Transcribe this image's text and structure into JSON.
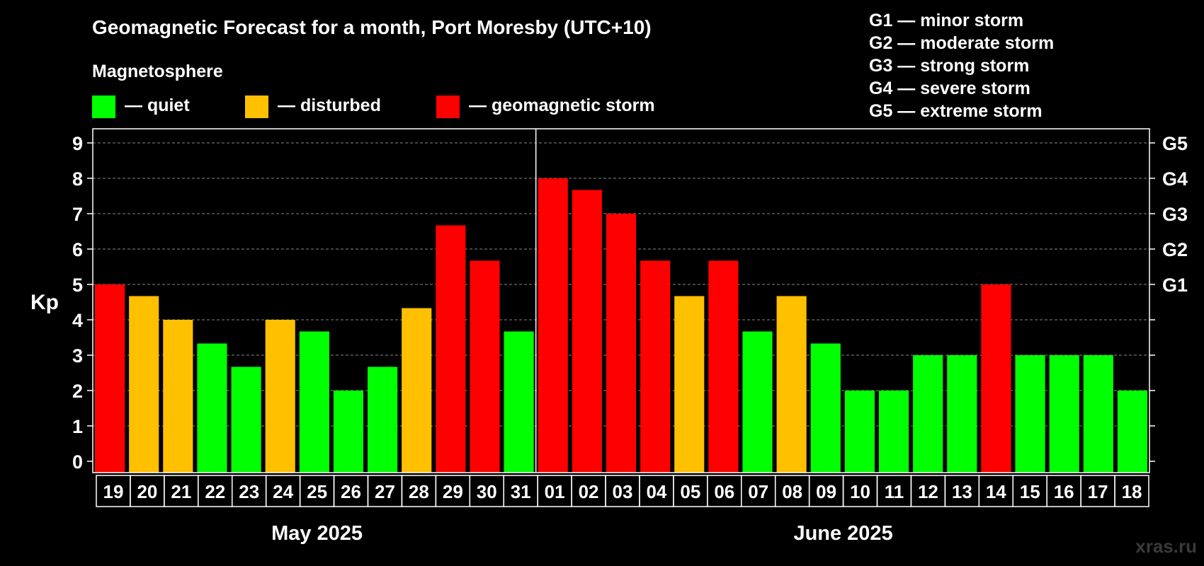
{
  "chart_data": {
    "type": "bar",
    "title": "Geomagnetic Forecast for a month, Port Moresby (UTC+10)",
    "section_label": "Magnetosphere",
    "legend": [
      {
        "label": "— quiet",
        "color": "#00ff00"
      },
      {
        "label": "— disturbed",
        "color": "#ffc000"
      },
      {
        "label": "— geomagnetic storm",
        "color": "#ff0000"
      }
    ],
    "storm_scale": [
      "G1 — minor storm",
      "G2 — moderate storm",
      "G3 — strong storm",
      "G4 — severe storm",
      "G5 — extreme storm"
    ],
    "ylabel": "Kp",
    "ylim": [
      0,
      9
    ],
    "yticks": [
      "0",
      "1",
      "2",
      "3",
      "4",
      "5",
      "6",
      "7",
      "8",
      "9"
    ],
    "right_ticks": [
      {
        "label": "G1",
        "kp": 5
      },
      {
        "label": "G2",
        "kp": 6
      },
      {
        "label": "G3",
        "kp": 7
      },
      {
        "label": "G4",
        "kp": 8
      },
      {
        "label": "G5",
        "kp": 9
      }
    ],
    "grid": true,
    "categories": [
      "19",
      "20",
      "21",
      "22",
      "23",
      "24",
      "25",
      "26",
      "27",
      "28",
      "29",
      "30",
      "31",
      "01",
      "02",
      "03",
      "04",
      "05",
      "06",
      "07",
      "08",
      "09",
      "10",
      "11",
      "12",
      "13",
      "14",
      "15",
      "16",
      "17",
      "18"
    ],
    "values": [
      5,
      4.67,
      4,
      3.33,
      2.67,
      4,
      3.67,
      2,
      2.67,
      4.33,
      6.67,
      5.67,
      3.67,
      8,
      7.67,
      7,
      5.67,
      4.67,
      5.67,
      3.67,
      4.67,
      3.33,
      2,
      2,
      3,
      3,
      5,
      3,
      3,
      3,
      2
    ],
    "levels": [
      "storm",
      "disturbed",
      "disturbed",
      "quiet",
      "quiet",
      "disturbed",
      "quiet",
      "quiet",
      "quiet",
      "disturbed",
      "storm",
      "storm",
      "quiet",
      "storm",
      "storm",
      "storm",
      "storm",
      "disturbed",
      "storm",
      "quiet",
      "disturbed",
      "quiet",
      "quiet",
      "quiet",
      "quiet",
      "quiet",
      "storm",
      "quiet",
      "quiet",
      "quiet",
      "quiet"
    ],
    "level_colors": {
      "quiet": "#00ff00",
      "disturbed": "#ffc000",
      "storm": "#ff0000"
    },
    "months": [
      {
        "label": "May 2025",
        "days": 13
      },
      {
        "label": "June 2025",
        "days": 18
      }
    ],
    "watermark": "xras.ru"
  }
}
